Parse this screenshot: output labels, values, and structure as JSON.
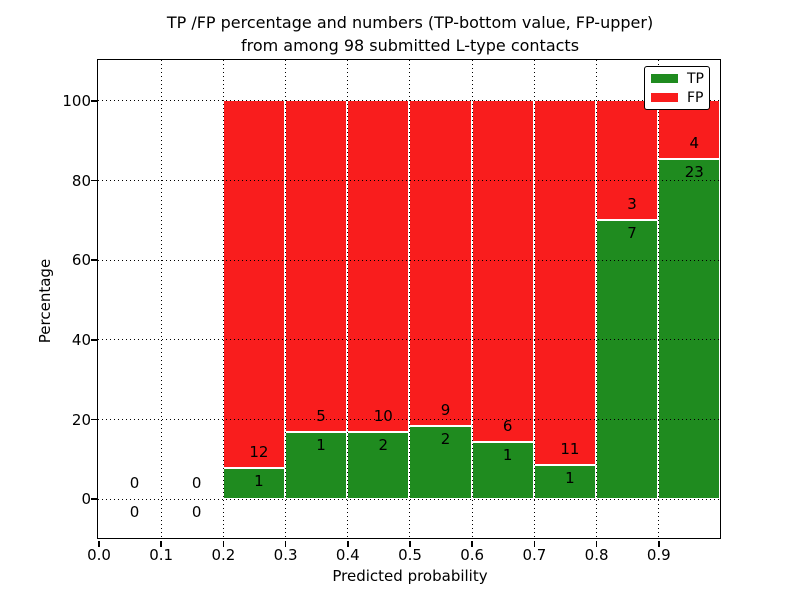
{
  "title_line1": "TP /FP percentage and numbers (TP-bottom value, FP-upper)",
  "title_line2": "from among 98 submitted L-type contacts",
  "axes": {
    "xlabel": "Predicted probability",
    "ylabel": "Percentage",
    "x_tick_labels": [
      "0.0",
      "0.1",
      "0.2",
      "0.3",
      "0.4",
      "0.5",
      "0.6",
      "0.7",
      "0.8",
      "0.9"
    ],
    "x_tick_values": [
      0,
      0.1,
      0.2,
      0.3,
      0.4,
      0.5,
      0.6,
      0.7,
      0.8,
      0.9
    ],
    "y_tick_labels": [
      "0",
      "20",
      "40",
      "60",
      "80",
      "100"
    ],
    "y_tick_values": [
      0,
      20,
      40,
      60,
      80,
      100
    ],
    "xlim": [
      0,
      1
    ],
    "ylim": [
      -10,
      110
    ],
    "grid_style": "dotted"
  },
  "legend": {
    "position": "upper-right",
    "items": [
      {
        "label": "TP",
        "color": "#1f8b1f"
      },
      {
        "label": "FP",
        "color": "#f91d1d"
      }
    ]
  },
  "colors": {
    "tp": "#1f8b1f",
    "fp": "#f91d1d",
    "grid": "#000000",
    "text": "#000000",
    "bar_edge": "#ffffff"
  },
  "chart_data": {
    "type": "bar",
    "stacked": true,
    "total_submitted": 98,
    "bin_width": 0.1,
    "note": "Each bar is normalized to 100%; green TP share on bottom, red FP share on top. Labels show raw counts: FP above the TP/FP boundary, TP below it.",
    "bins": [
      {
        "x0": 0.0,
        "x1": 0.1,
        "tp_count": 0,
        "fp_count": 0,
        "tp_pct": 0,
        "fp_pct": 0
      },
      {
        "x0": 0.1,
        "x1": 0.2,
        "tp_count": 0,
        "fp_count": 0,
        "tp_pct": 0,
        "fp_pct": 0
      },
      {
        "x0": 0.2,
        "x1": 0.3,
        "tp_count": 1,
        "fp_count": 12,
        "tp_pct": 7.692,
        "fp_pct": 92.308
      },
      {
        "x0": 0.3,
        "x1": 0.4,
        "tp_count": 1,
        "fp_count": 5,
        "tp_pct": 16.667,
        "fp_pct": 83.333
      },
      {
        "x0": 0.4,
        "x1": 0.5,
        "tp_count": 2,
        "fp_count": 10,
        "tp_pct": 16.667,
        "fp_pct": 83.333
      },
      {
        "x0": 0.5,
        "x1": 0.6,
        "tp_count": 2,
        "fp_count": 9,
        "tp_pct": 18.182,
        "fp_pct": 81.818
      },
      {
        "x0": 0.6,
        "x1": 0.7,
        "tp_count": 1,
        "fp_count": 6,
        "tp_pct": 14.286,
        "fp_pct": 85.714
      },
      {
        "x0": 0.7,
        "x1": 0.8,
        "tp_count": 1,
        "fp_count": 11,
        "tp_pct": 8.333,
        "fp_pct": 91.667
      },
      {
        "x0": 0.8,
        "x1": 0.9,
        "tp_count": 7,
        "fp_count": 3,
        "tp_pct": 70.0,
        "fp_pct": 30.0
      },
      {
        "x0": 0.9,
        "x1": 1.0,
        "tp_count": 23,
        "fp_count": 4,
        "tp_pct": 85.185,
        "fp_pct": 14.815
      }
    ]
  }
}
